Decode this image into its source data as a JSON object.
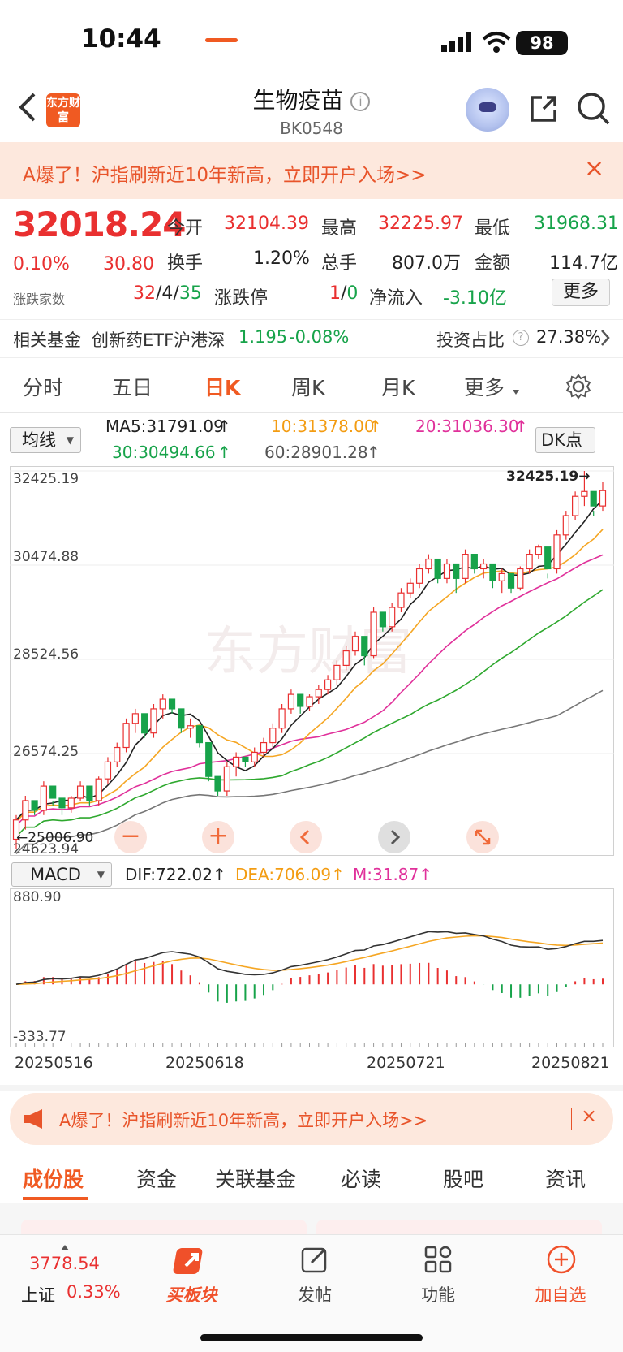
{
  "status_bar": {
    "time": "10:44",
    "battery": "98"
  },
  "header": {
    "logo": "东方财富",
    "title": "生物疫苗",
    "code": "BK0548"
  },
  "banner_top": {
    "text": "A爆了！沪指刷新近10年新高，立即开户入场>>",
    "close": "×"
  },
  "quote": {
    "price": "32018.24",
    "change_pct": "0.10%",
    "change": "30.80",
    "open_label": "今开",
    "open": "32104.39",
    "high_label": "最高",
    "high": "32225.97",
    "low_label": "最低",
    "low": "31968.31",
    "turnover_label": "换手",
    "turnover": "1.20%",
    "volume_label": "总手",
    "volume": "807.0万",
    "amount_label": "金额",
    "amount": "114.7亿",
    "breadth_label": "涨跌家数",
    "breadth_up": "32",
    "breadth_flat": "4",
    "breadth_down": "35",
    "limit_label": "涨跌停",
    "limit_up": "1",
    "limit_down": "0",
    "inflow_label": "净流入",
    "inflow": "-3.10亿",
    "more": "更多"
  },
  "fund_row": {
    "label": "相关基金",
    "name": "创新药ETF沪港深",
    "price": "1.195",
    "change": "-0.08%",
    "ratio_label": "投资占比",
    "ratio": "27.38%"
  },
  "chart_tabs": [
    "分时",
    "五日",
    "日K",
    "周K",
    "月K",
    "更多"
  ],
  "ma": {
    "selector": "均线",
    "ma5": "MA5:31791.09",
    "ma10": "10:31378.00",
    "ma20": "20:31036.30",
    "ma30": "30:30494.66",
    "ma60": "60:28901.28",
    "dk": "DK点"
  },
  "macd": {
    "selector": "MACD",
    "dif": "DIF:722.02",
    "dea": "DEA:706.09",
    "m": "M:31.87"
  },
  "chart_data": {
    "type": "candlestick",
    "y_ticks": [
      "32425.19",
      "30474.88",
      "28524.56",
      "26574.25",
      "24623.94"
    ],
    "max_marker": "32425.19→",
    "min_marker": "←25006.90",
    "dates": [
      "20250516",
      "20250618",
      "20250721",
      "20250821"
    ],
    "macd_ticks": [
      "880.90",
      "-333.77"
    ],
    "colors": {
      "up": "#e93030",
      "down": "#17a34a",
      "ma5": "#222222",
      "ma10": "#f5a623",
      "ma20": "#e0309a",
      "ma30": "#2ea82e",
      "ma60": "#777777"
    },
    "ohlc_approx": [
      [
        24800,
        25300,
        24600,
        25200
      ],
      [
        25200,
        25700,
        25000,
        25600
      ],
      [
        25600,
        25500,
        25300,
        25400
      ],
      [
        25400,
        26000,
        25300,
        25900
      ],
      [
        25900,
        25600,
        25500,
        25650
      ],
      [
        25650,
        25500,
        25300,
        25450
      ],
      [
        25450,
        25700,
        25350,
        25650
      ],
      [
        25650,
        26000,
        25600,
        25900
      ],
      [
        25900,
        25700,
        25500,
        25600
      ],
      [
        25600,
        26100,
        25500,
        26050
      ],
      [
        26050,
        26500,
        25950,
        26400
      ],
      [
        26400,
        26800,
        26300,
        26700
      ],
      [
        26700,
        27300,
        26600,
        27200
      ],
      [
        27200,
        27500,
        27000,
        27400
      ],
      [
        27400,
        27100,
        26900,
        27000
      ],
      [
        27000,
        27600,
        26900,
        27500
      ],
      [
        27500,
        27800,
        27300,
        27700
      ],
      [
        27700,
        27600,
        27400,
        27500
      ],
      [
        27500,
        27200,
        27000,
        27100
      ],
      [
        27100,
        27300,
        26900,
        27150
      ],
      [
        27150,
        26900,
        26700,
        26800
      ],
      [
        26800,
        26300,
        26000,
        26100
      ],
      [
        26100,
        26000,
        25700,
        25800
      ],
      [
        25800,
        26400,
        25700,
        26300
      ],
      [
        26300,
        26600,
        26100,
        26500
      ],
      [
        26500,
        26450,
        26300,
        26400
      ],
      [
        26400,
        26700,
        26300,
        26600
      ],
      [
        26600,
        26900,
        26500,
        26800
      ],
      [
        26800,
        27200,
        26700,
        27100
      ],
      [
        27100,
        27600,
        27000,
        27500
      ],
      [
        27500,
        27900,
        27400,
        27800
      ],
      [
        27800,
        27600,
        27400,
        27550
      ],
      [
        27550,
        27800,
        27450,
        27750
      ],
      [
        27750,
        28000,
        27600,
        27900
      ],
      [
        27900,
        28200,
        27800,
        28100
      ],
      [
        28100,
        28500,
        28000,
        28400
      ],
      [
        28400,
        28800,
        28300,
        28700
      ],
      [
        28700,
        29100,
        28600,
        29000
      ],
      [
        29000,
        28700,
        28400,
        28600
      ],
      [
        28600,
        29600,
        28550,
        29500
      ],
      [
        29500,
        29300,
        29100,
        29200
      ],
      [
        29200,
        29700,
        29100,
        29600
      ],
      [
        29600,
        30000,
        29500,
        29900
      ],
      [
        29900,
        30200,
        29800,
        30100
      ],
      [
        30100,
        30500,
        30000,
        30400
      ],
      [
        30400,
        30700,
        30300,
        30600
      ],
      [
        30600,
        30300,
        30100,
        30200
      ],
      [
        30200,
        30600,
        30100,
        30500
      ],
      [
        30500,
        30300,
        29900,
        30200
      ],
      [
        30200,
        30800,
        30100,
        30700
      ],
      [
        30700,
        30500,
        30300,
        30400
      ],
      [
        30400,
        30600,
        30200,
        30500
      ],
      [
        30500,
        30200,
        30000,
        30150
      ],
      [
        30150,
        30400,
        29900,
        30300
      ],
      [
        30300,
        30050,
        29900,
        30000
      ],
      [
        30000,
        30450,
        29950,
        30400
      ],
      [
        30400,
        30800,
        30300,
        30700
      ],
      [
        30700,
        30900,
        30600,
        30850
      ],
      [
        30850,
        30300,
        30200,
        30400
      ],
      [
        30400,
        31200,
        30300,
        31100
      ],
      [
        31100,
        31600,
        31000,
        31500
      ],
      [
        31500,
        32000,
        31400,
        31900
      ],
      [
        31900,
        32425,
        31700,
        32000
      ],
      [
        32000,
        31600,
        31500,
        31700
      ],
      [
        31700,
        32200,
        31600,
        32018
      ]
    ]
  },
  "banner_bottom": {
    "text": "A爆了！沪指刷新近10年新高，立即开户入场>>",
    "close": "×"
  },
  "bottom_tabs": [
    "成份股",
    "资金",
    "关联基金",
    "必读",
    "股吧",
    "资讯"
  ],
  "bottom_nav": {
    "index_value": "3778.54",
    "index_name": "上证",
    "index_change": "0.33%",
    "buy": "买板块",
    "post": "发帖",
    "func": "功能",
    "add": "加自选"
  }
}
